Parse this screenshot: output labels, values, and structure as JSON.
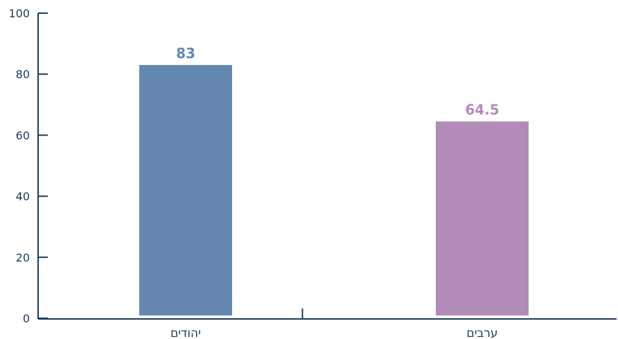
{
  "chart_data": {
    "type": "bar",
    "categories": [
      "יהודים",
      "ערבים"
    ],
    "values": [
      83,
      64.5
    ],
    "value_labels": [
      "83",
      "64.5"
    ],
    "colors": [
      "#6588b0",
      "#b28bb8"
    ],
    "title": "",
    "xlabel": "",
    "ylabel": "",
    "ylim": [
      0,
      100
    ],
    "yticks": [
      0,
      20,
      40,
      60,
      80,
      100
    ],
    "ytick_labels": [
      "0",
      "20",
      "40",
      "60",
      "80",
      "100"
    ],
    "grid": false,
    "axis_color": "#1a3a5c"
  }
}
